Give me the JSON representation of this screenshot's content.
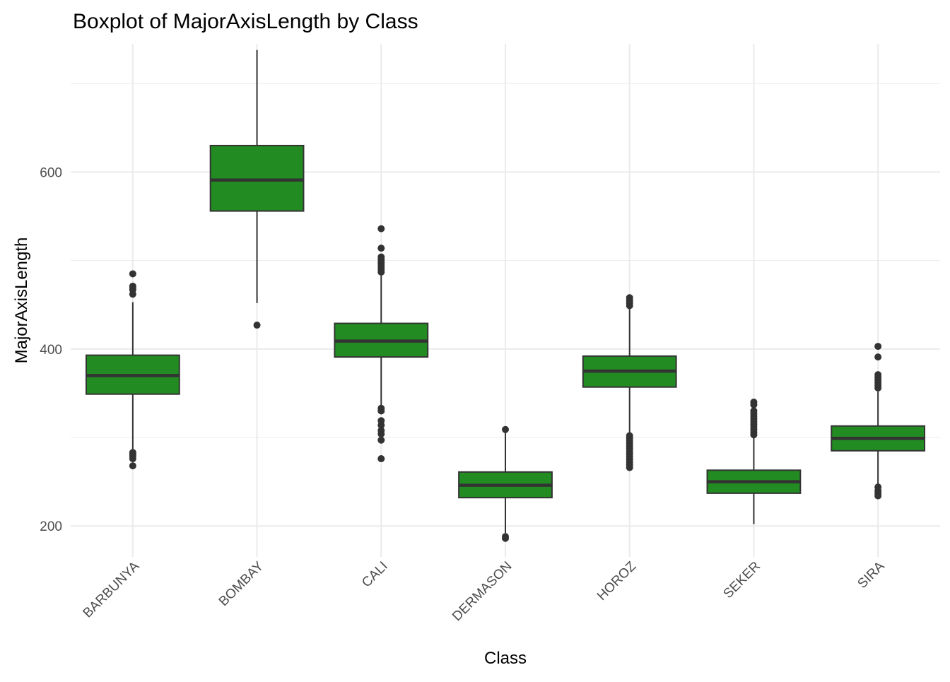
{
  "chart_data": {
    "type": "boxplot",
    "title": "Boxplot of MajorAxisLength by Class",
    "xlabel": "Class",
    "ylabel": "MajorAxisLength",
    "ylim": [
      165,
      745
    ],
    "yticks": [
      200,
      400,
      600
    ],
    "grid": true,
    "legend": "none",
    "colors": {
      "box_fill": "#228B22",
      "box_line": "#333333",
      "grid": "#ebebeb",
      "tick_text": "#4d4d4d"
    },
    "categories": [
      "BARBUNYA",
      "BOMBAY",
      "CALI",
      "DERMASON",
      "HOROZ",
      "SEKER",
      "SIRA"
    ],
    "boxes": [
      {
        "name": "BARBUNYA",
        "whisker_low": 287,
        "q1": 349,
        "median": 370,
        "q3": 393,
        "whisker_high": 453,
        "outliers": [
          485,
          471,
          469,
          467,
          462,
          283,
          281,
          279,
          276,
          268
        ]
      },
      {
        "name": "BOMBAY",
        "whisker_low": 452,
        "q1": 556,
        "median": 591,
        "q3": 630,
        "whisker_high": 738,
        "outliers": [
          427
        ]
      },
      {
        "name": "CALI",
        "whisker_low": 334,
        "q1": 391,
        "median": 409,
        "q3": 429,
        "whisker_high": 484,
        "outliers": [
          536,
          514,
          504,
          501,
          498,
          496,
          493,
          490,
          487,
          333,
          330,
          319,
          314,
          308,
          304,
          297,
          276
        ]
      },
      {
        "name": "DERMASON",
        "whisker_low": 192,
        "q1": 232,
        "median": 246,
        "q3": 261,
        "whisker_high": 308,
        "outliers": [
          309,
          188,
          186
        ]
      },
      {
        "name": "HOROZ",
        "whisker_low": 305,
        "q1": 357,
        "median": 375,
        "q3": 392,
        "whisker_high": 445,
        "outliers": [
          458,
          455,
          452,
          449,
          302,
          299,
          296,
          293,
          290,
          287,
          284,
          281,
          278,
          275,
          272,
          269,
          266
        ]
      },
      {
        "name": "SEKER",
        "whisker_low": 202,
        "q1": 237,
        "median": 250,
        "q3": 263,
        "whisker_high": 300,
        "outliers": [
          340,
          337,
          330,
          327,
          324,
          321,
          318,
          315,
          312,
          309,
          306,
          303
        ]
      },
      {
        "name": "SIRA",
        "whisker_low": 245,
        "q1": 285,
        "median": 299,
        "q3": 313,
        "whisker_high": 352,
        "outliers": [
          403,
          391,
          371,
          368,
          365,
          362,
          359,
          356,
          244,
          240,
          237,
          234
        ]
      }
    ]
  }
}
